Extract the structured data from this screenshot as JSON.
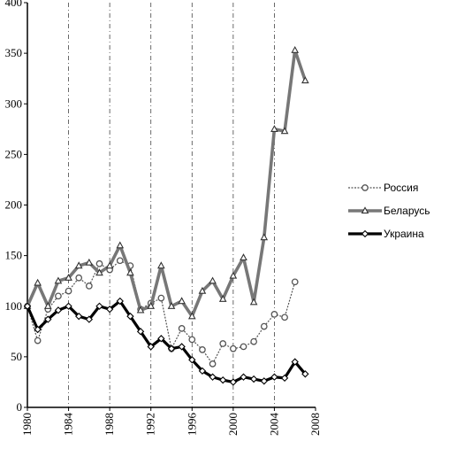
{
  "chart_data": {
    "type": "line",
    "title": "",
    "xlabel": "",
    "ylabel": "",
    "xlim": [
      1980,
      2008
    ],
    "ylim": [
      0,
      400
    ],
    "x_ticks": [
      1980,
      1984,
      1988,
      1992,
      1996,
      2000,
      2004,
      2008
    ],
    "y_ticks": [
      0,
      50,
      100,
      150,
      200,
      250,
      300,
      350,
      400
    ],
    "vertical_gridlines": [
      1984,
      1988,
      1992,
      1996,
      2000,
      2004
    ],
    "legend_position": "right",
    "series": [
      {
        "name": "Россия",
        "color": "#555555",
        "marker": "circle",
        "x": [
          1980,
          1981,
          1982,
          1983,
          1984,
          1985,
          1986,
          1987,
          1988,
          1989,
          1990,
          1991,
          1992,
          1993,
          1994,
          1995,
          1996,
          1997,
          1998,
          1999,
          2000,
          2001,
          2002,
          2003,
          2004,
          2005,
          2006
        ],
        "values": [
          100,
          66,
          97,
          110,
          115,
          128,
          120,
          142,
          136,
          145,
          140,
          97,
          103,
          108,
          58,
          78,
          67,
          57,
          43,
          63,
          58,
          60,
          65,
          80,
          92,
          89,
          124
        ]
      },
      {
        "name": "Беларусь",
        "color": "#777777",
        "marker": "triangle",
        "x": [
          1980,
          1981,
          1982,
          1983,
          1984,
          1985,
          1986,
          1987,
          1988,
          1989,
          1990,
          1991,
          1992,
          1993,
          1994,
          1995,
          1996,
          1997,
          1998,
          1999,
          2000,
          2001,
          2002,
          2003,
          2004,
          2005,
          2006,
          2007
        ],
        "values": [
          100,
          123,
          100,
          125,
          128,
          140,
          143,
          133,
          140,
          160,
          133,
          96,
          100,
          140,
          100,
          105,
          90,
          115,
          125,
          107,
          130,
          148,
          104,
          168,
          275,
          273,
          353,
          323
        ]
      },
      {
        "name": "Украина",
        "color": "#000000",
        "marker": "diamond",
        "x": [
          1980,
          1981,
          1982,
          1983,
          1984,
          1985,
          1986,
          1987,
          1988,
          1989,
          1990,
          1991,
          1992,
          1993,
          1994,
          1995,
          1996,
          1997,
          1998,
          1999,
          2000,
          2001,
          2002,
          2003,
          2004,
          2005,
          2006,
          2007
        ],
        "values": [
          100,
          77,
          87,
          96,
          100,
          90,
          87,
          100,
          97,
          105,
          90,
          75,
          60,
          68,
          58,
          60,
          47,
          36,
          30,
          27,
          25,
          30,
          28,
          26,
          30,
          29,
          45,
          33
        ]
      }
    ]
  }
}
